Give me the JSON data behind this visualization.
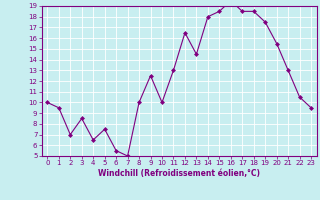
{
  "x": [
    0,
    1,
    2,
    3,
    4,
    5,
    6,
    7,
    8,
    9,
    10,
    11,
    12,
    13,
    14,
    15,
    16,
    17,
    18,
    19,
    20,
    21,
    22,
    23
  ],
  "y": [
    10,
    9.5,
    7,
    8.5,
    6.5,
    7.5,
    5.5,
    5,
    10,
    12.5,
    10,
    13,
    16.5,
    14.5,
    18,
    18.5,
    19.5,
    18.5,
    18.5,
    17.5,
    15.5,
    13,
    10.5,
    9.5
  ],
  "line_color": "#800080",
  "marker": "D",
  "marker_size": 2,
  "bg_color": "#c8eef0",
  "grid_color": "#b0d8dc",
  "xlabel": "Windchill (Refroidissement éolien,°C)",
  "ylim": [
    5,
    19
  ],
  "xlim": [
    -0.5,
    23.5
  ],
  "yticks": [
    5,
    6,
    7,
    8,
    9,
    10,
    11,
    12,
    13,
    14,
    15,
    16,
    17,
    18,
    19
  ],
  "xticks": [
    0,
    1,
    2,
    3,
    4,
    5,
    6,
    7,
    8,
    9,
    10,
    11,
    12,
    13,
    14,
    15,
    16,
    17,
    18,
    19,
    20,
    21,
    22,
    23
  ],
  "tick_color": "#800080",
  "label_color": "#800080",
  "label_fontsize": 5.5,
  "tick_fontsize": 5.0,
  "spine_color": "#800080"
}
